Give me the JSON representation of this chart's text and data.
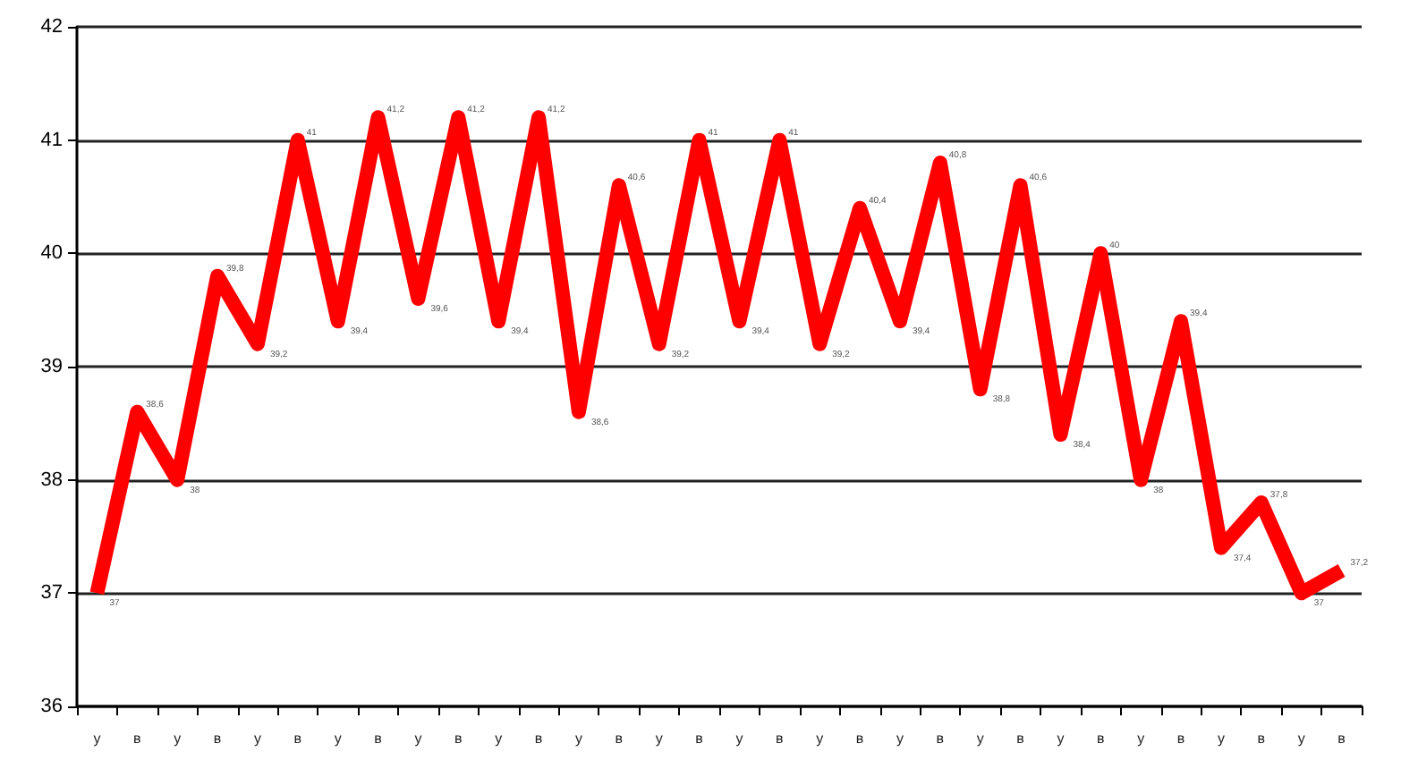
{
  "chart_data": {
    "type": "line",
    "categories": [
      "у",
      "в",
      "у",
      "в",
      "у",
      "в",
      "у",
      "в",
      "у",
      "в",
      "у",
      "в",
      "у",
      "в",
      "у",
      "в",
      "у",
      "в",
      "у",
      "в",
      "у",
      "в",
      "у",
      "в",
      "у",
      "в",
      "у",
      "в",
      "у",
      "в",
      "у",
      "в"
    ],
    "series": [
      {
        "color": "#ff0000",
        "values": [
          37,
          38.6,
          38,
          39.8,
          39.2,
          41,
          39.4,
          41.2,
          39.6,
          41.2,
          39.4,
          41.2,
          38.6,
          40.6,
          39.2,
          41,
          39.4,
          41,
          39.2,
          40.4,
          39.4,
          40.8,
          38.8,
          40.6,
          38.4,
          40,
          38,
          39.4,
          37.4,
          37.8,
          37,
          37.2
        ],
        "value_labels": [
          "37",
          "38,6",
          "38",
          "39,8",
          "39,2",
          "41",
          "39,4",
          "41,2",
          "39,6",
          "41,2",
          "39,4",
          "41,2",
          "38,6",
          "40,6",
          "39,2",
          "41",
          "39,4",
          "41",
          "39,2",
          "40,4",
          "39,4",
          "40,8",
          "38,8",
          "40,6",
          "38,4",
          "40",
          "38",
          "39,4",
          "37,4",
          "37,8",
          "37",
          "37,2"
        ]
      }
    ],
    "ylim": [
      36,
      42
    ],
    "yticks": [
      36,
      37,
      38,
      39,
      40,
      41,
      42
    ],
    "grid": "y",
    "marker": "none",
    "line_style": "solid"
  }
}
